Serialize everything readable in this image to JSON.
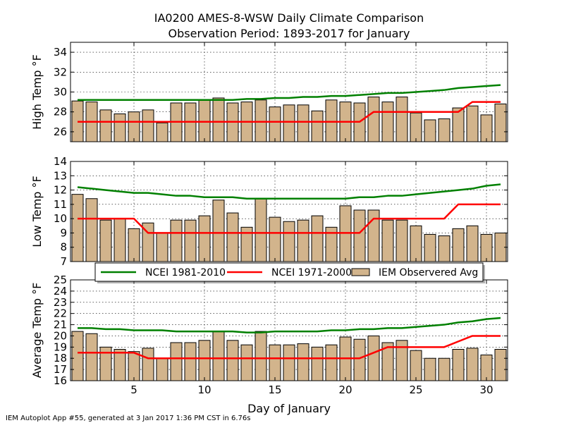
{
  "page": {
    "title_line1": "IA0200 AMES-8-WSW Daily Climate Comparison",
    "title_line2": "Observation Period: 1893-2017 for January",
    "footer": "IEM Autoplot App #55, generated at 3 Jan 2017 1:36 PM CST in 6.76s"
  },
  "colors": {
    "bar_fill": "#d2b48c",
    "ncei_1981_2010": "#008000",
    "ncei_1971_2000": "#ff0000"
  },
  "legend": {
    "items": [
      "NCEI 1981-2010",
      "NCEI 1971-2000",
      "IEM Observered Avg"
    ],
    "placement": "between middle and bottom panels"
  },
  "chart_data": [
    {
      "type": "bar",
      "panel": "high",
      "ylabel": "High Temp °F",
      "xlabel": "",
      "ylim": [
        25,
        35
      ],
      "yticks": [
        26,
        28,
        30,
        32,
        34
      ],
      "xlim": [
        0.5,
        31.5
      ],
      "xticks": [
        5,
        10,
        15,
        20,
        25,
        30
      ],
      "grid": true,
      "days": [
        1,
        2,
        3,
        4,
        5,
        6,
        7,
        8,
        9,
        10,
        11,
        12,
        13,
        14,
        15,
        16,
        17,
        18,
        19,
        20,
        21,
        22,
        23,
        24,
        25,
        26,
        27,
        28,
        29,
        30,
        31
      ],
      "series": [
        {
          "name": "IEM Observered Avg",
          "kind": "bar",
          "values": [
            29.1,
            29.0,
            28.2,
            27.8,
            28.0,
            28.2,
            26.9,
            28.9,
            28.9,
            29.2,
            29.4,
            28.9,
            29.0,
            29.2,
            28.5,
            28.7,
            28.7,
            28.1,
            29.2,
            29.0,
            28.9,
            29.5,
            29.0,
            29.5,
            27.9,
            27.2,
            27.3,
            28.4,
            28.6,
            27.7,
            28.8
          ]
        },
        {
          "name": "NCEI 1981-2010",
          "kind": "line",
          "values": [
            29.2,
            29.2,
            29.2,
            29.2,
            29.2,
            29.2,
            29.2,
            29.2,
            29.2,
            29.2,
            29.2,
            29.2,
            29.3,
            29.3,
            29.4,
            29.4,
            29.5,
            29.5,
            29.6,
            29.6,
            29.7,
            29.8,
            29.9,
            29.9,
            30.0,
            30.1,
            30.2,
            30.4,
            30.5,
            30.6,
            30.7
          ]
        },
        {
          "name": "NCEI 1971-2000",
          "kind": "line",
          "values": [
            27,
            27,
            27,
            27,
            27,
            27,
            27,
            27,
            27,
            27,
            27,
            27,
            27,
            27,
            27,
            27,
            27,
            27,
            27,
            27,
            27,
            28,
            28,
            28,
            28,
            28,
            28,
            28,
            29,
            29,
            29
          ]
        }
      ]
    },
    {
      "type": "bar",
      "panel": "low",
      "ylabel": "Low Temp °F",
      "xlabel": "",
      "ylim": [
        7,
        14
      ],
      "yticks": [
        7,
        8,
        9,
        10,
        11,
        12,
        13,
        14
      ],
      "xlim": [
        0.5,
        31.5
      ],
      "xticks": [
        5,
        10,
        15,
        20,
        25,
        30
      ],
      "grid": true,
      "days": [
        1,
        2,
        3,
        4,
        5,
        6,
        7,
        8,
        9,
        10,
        11,
        12,
        13,
        14,
        15,
        16,
        17,
        18,
        19,
        20,
        21,
        22,
        23,
        24,
        25,
        26,
        27,
        28,
        29,
        30,
        31
      ],
      "series": [
        {
          "name": "IEM Observered Avg",
          "kind": "bar",
          "values": [
            11.7,
            11.4,
            9.9,
            10.0,
            9.3,
            9.7,
            9.0,
            9.9,
            9.9,
            10.2,
            11.3,
            10.4,
            9.4,
            11.4,
            10.1,
            9.8,
            9.9,
            10.2,
            9.4,
            10.9,
            10.6,
            10.6,
            9.9,
            9.9,
            9.5,
            8.9,
            8.8,
            9.3,
            9.5,
            8.9,
            9.0
          ]
        },
        {
          "name": "NCEI 1981-2010",
          "kind": "line",
          "values": [
            12.2,
            12.1,
            12.0,
            11.9,
            11.8,
            11.8,
            11.7,
            11.6,
            11.6,
            11.5,
            11.5,
            11.5,
            11.4,
            11.4,
            11.4,
            11.4,
            11.4,
            11.4,
            11.4,
            11.4,
            11.5,
            11.5,
            11.6,
            11.6,
            11.7,
            11.8,
            11.9,
            12.0,
            12.1,
            12.3,
            12.4
          ]
        },
        {
          "name": "NCEI 1971-2000",
          "kind": "line",
          "values": [
            10,
            10,
            10,
            10,
            10,
            9,
            9,
            9,
            9,
            9,
            9,
            9,
            9,
            9,
            9,
            9,
            9,
            9,
            9,
            9,
            9,
            10,
            10,
            10,
            10,
            10,
            10,
            11,
            11,
            11,
            11
          ]
        }
      ]
    },
    {
      "type": "bar",
      "panel": "average",
      "ylabel": "Average Temp °F",
      "xlabel": "Day of January",
      "ylim": [
        16,
        25
      ],
      "yticks": [
        16,
        17,
        18,
        19,
        20,
        21,
        22,
        23,
        24,
        25
      ],
      "xlim": [
        0.5,
        31.5
      ],
      "xticks": [
        5,
        10,
        15,
        20,
        25,
        30
      ],
      "grid": true,
      "days": [
        1,
        2,
        3,
        4,
        5,
        6,
        7,
        8,
        9,
        10,
        11,
        12,
        13,
        14,
        15,
        16,
        17,
        18,
        19,
        20,
        21,
        22,
        23,
        24,
        25,
        26,
        27,
        28,
        29,
        30,
        31
      ],
      "series": [
        {
          "name": "IEM Observered Avg",
          "kind": "bar",
          "values": [
            20.4,
            20.2,
            19.0,
            18.8,
            18.6,
            18.9,
            18.0,
            19.4,
            19.4,
            19.6,
            20.4,
            19.6,
            19.2,
            20.4,
            19.2,
            19.2,
            19.3,
            19.0,
            19.2,
            19.9,
            19.7,
            20.0,
            19.4,
            19.6,
            18.7,
            18.0,
            18.0,
            18.8,
            18.9,
            18.3,
            18.8
          ]
        },
        {
          "name": "NCEI 1981-2010",
          "kind": "line",
          "values": [
            20.7,
            20.7,
            20.6,
            20.6,
            20.5,
            20.5,
            20.5,
            20.4,
            20.4,
            20.4,
            20.4,
            20.4,
            20.3,
            20.3,
            20.4,
            20.4,
            20.4,
            20.4,
            20.5,
            20.5,
            20.6,
            20.6,
            20.7,
            20.7,
            20.8,
            20.9,
            21.0,
            21.2,
            21.3,
            21.5,
            21.6
          ]
        },
        {
          "name": "NCEI 1971-2000",
          "kind": "line",
          "values": [
            18.5,
            18.5,
            18.5,
            18.5,
            18.5,
            18,
            18,
            18,
            18,
            18,
            18,
            18,
            18,
            18,
            18,
            18,
            18,
            18,
            18,
            18,
            18,
            18.5,
            19,
            19,
            19,
            19,
            19,
            19.5,
            20,
            20,
            20
          ]
        }
      ]
    }
  ]
}
